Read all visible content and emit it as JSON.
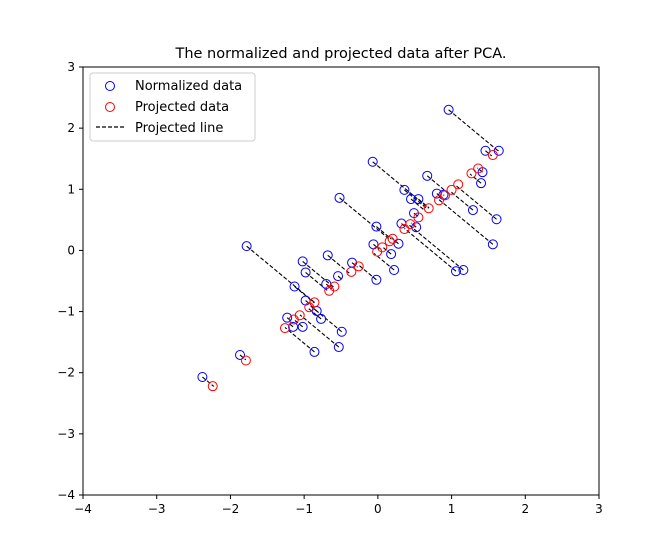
{
  "colors": {
    "normalized": "#0000ff",
    "projected": "#ff0000",
    "projected_line": "#000000"
  },
  "chart_data": {
    "type": "scatter",
    "title": "The normalized and projected data after PCA.",
    "xlabel": "",
    "ylabel": "",
    "xlim": [
      -4,
      3
    ],
    "ylim": [
      -4,
      3
    ],
    "xticks": [
      "−4",
      "−3",
      "−2",
      "−1",
      "0",
      "1",
      "2",
      "3"
    ],
    "yticks": [
      "−4",
      "−3",
      "−2",
      "−1",
      "0",
      "1",
      "2",
      "3"
    ],
    "grid": false,
    "legend": {
      "position": "top-left",
      "entries": [
        "Normalized data",
        "Projected data",
        "Projected line"
      ]
    },
    "series": [
      {
        "name": "Normalized data",
        "marker": "open-circle",
        "color": "#0000ff",
        "points": [
          [
            -2.38,
            -2.07
          ],
          [
            -1.87,
            -1.71
          ],
          [
            -1.78,
            0.07
          ],
          [
            -1.23,
            -1.1
          ],
          [
            -1.15,
            -1.25
          ],
          [
            -1.13,
            -0.59
          ],
          [
            -1.02,
            -1.25
          ],
          [
            -1.02,
            -0.18
          ],
          [
            -0.98,
            -0.36
          ],
          [
            -0.98,
            -0.82
          ],
          [
            -0.86,
            -1.66
          ],
          [
            -0.83,
            -0.99
          ],
          [
            -0.77,
            -1.12
          ],
          [
            -0.68,
            -0.08
          ],
          [
            -0.7,
            -0.55
          ],
          [
            -0.54,
            -0.42
          ],
          [
            -0.49,
            -1.33
          ],
          [
            -0.52,
            0.86
          ],
          [
            -0.53,
            -1.58
          ],
          [
            -0.35,
            -0.2
          ],
          [
            -0.07,
            1.45
          ],
          [
            -0.06,
            0.1
          ],
          [
            -0.02,
            -0.48
          ],
          [
            -0.02,
            0.39
          ],
          [
            0.18,
            -0.06
          ],
          [
            0.22,
            -0.32
          ],
          [
            0.28,
            0.11
          ],
          [
            0.32,
            0.44
          ],
          [
            0.36,
            0.99
          ],
          [
            0.45,
            0.84
          ],
          [
            0.49,
            0.61
          ],
          [
            0.52,
            0.38
          ],
          [
            0.55,
            0.84
          ],
          [
            0.67,
            1.22
          ],
          [
            0.8,
            0.93
          ],
          [
            0.89,
            0.91
          ],
          [
            0.96,
            2.3
          ],
          [
            1.06,
            -0.34
          ],
          [
            1.16,
            -0.32
          ],
          [
            1.29,
            0.66
          ],
          [
            1.4,
            1.1
          ],
          [
            1.42,
            1.28
          ],
          [
            1.46,
            1.63
          ],
          [
            1.56,
            0.1
          ],
          [
            1.61,
            0.51
          ],
          [
            1.64,
            1.63
          ]
        ]
      },
      {
        "name": "Projected data",
        "marker": "open-circle",
        "color": "#ff0000",
        "points": [
          [
            -2.24,
            -2.22
          ],
          [
            -1.79,
            -1.8
          ],
          [
            -1.26,
            -1.27
          ],
          [
            -1.14,
            -1.13
          ],
          [
            -1.06,
            -1.06
          ],
          [
            -0.93,
            -0.93
          ],
          [
            -0.86,
            -0.85
          ],
          [
            -0.66,
            -0.66
          ],
          [
            -0.59,
            -0.59
          ],
          [
            -0.36,
            -0.35
          ],
          [
            -0.26,
            -0.26
          ],
          [
            -0.01,
            -0.02
          ],
          [
            0.06,
            0.05
          ],
          [
            0.16,
            0.15
          ],
          [
            0.2,
            0.19
          ],
          [
            0.36,
            0.35
          ],
          [
            0.44,
            0.43
          ],
          [
            0.55,
            0.54
          ],
          [
            0.69,
            0.69
          ],
          [
            0.83,
            0.82
          ],
          [
            0.91,
            0.9
          ],
          [
            1.0,
            0.99
          ],
          [
            1.09,
            1.08
          ],
          [
            1.27,
            1.26
          ],
          [
            1.36,
            1.34
          ],
          [
            1.56,
            1.56
          ]
        ]
      }
    ]
  }
}
